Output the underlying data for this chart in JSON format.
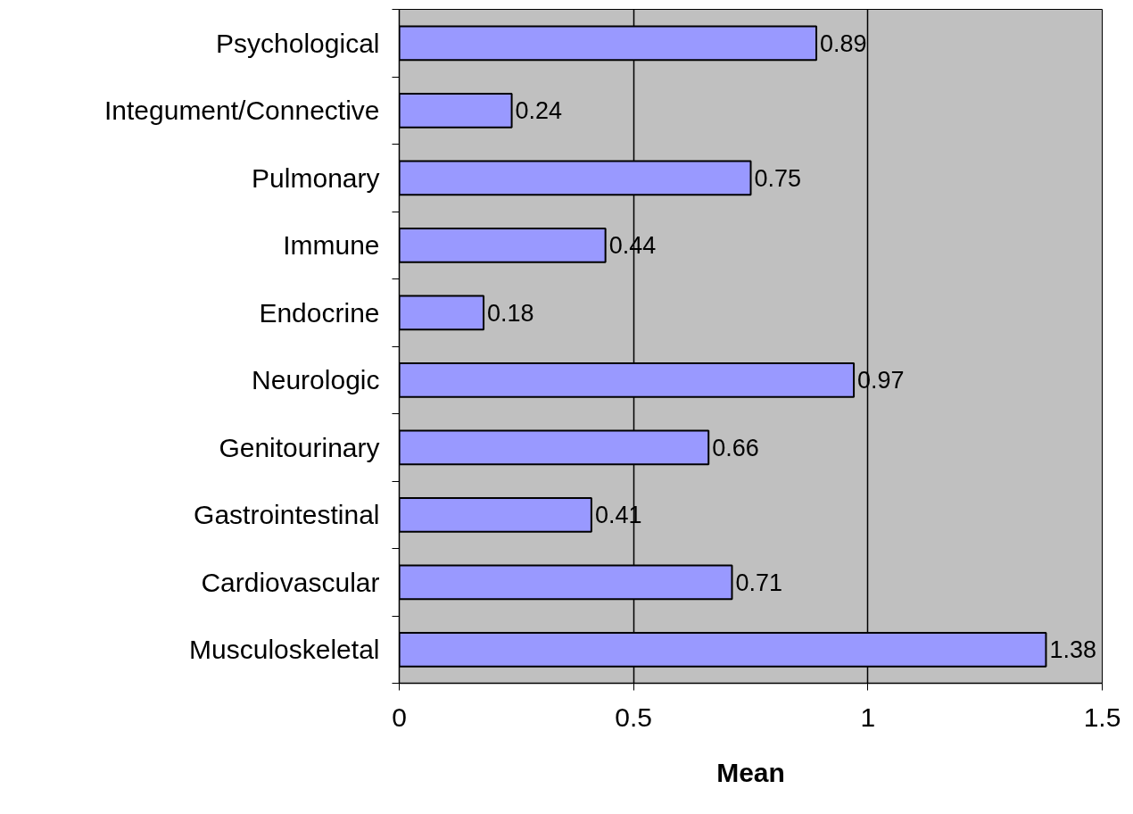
{
  "chart_data": {
    "type": "bar",
    "orientation": "horizontal",
    "xlabel": "Mean",
    "categories": [
      "Psychological",
      "Integument/Connective",
      "Pulmonary",
      "Immune",
      "Endocrine",
      "Neurologic",
      "Genitourinary",
      "Gastrointestinal",
      "Cardiovascular",
      "Musculoskeletal"
    ],
    "values": [
      0.89,
      0.24,
      0.75,
      0.44,
      0.18,
      0.97,
      0.66,
      0.41,
      0.71,
      1.38
    ],
    "color": "#9999ff",
    "xlim": [
      0,
      1.5
    ],
    "xticks": [
      0,
      0.5,
      1,
      1.5
    ],
    "grid": "x",
    "data_labels": true
  }
}
